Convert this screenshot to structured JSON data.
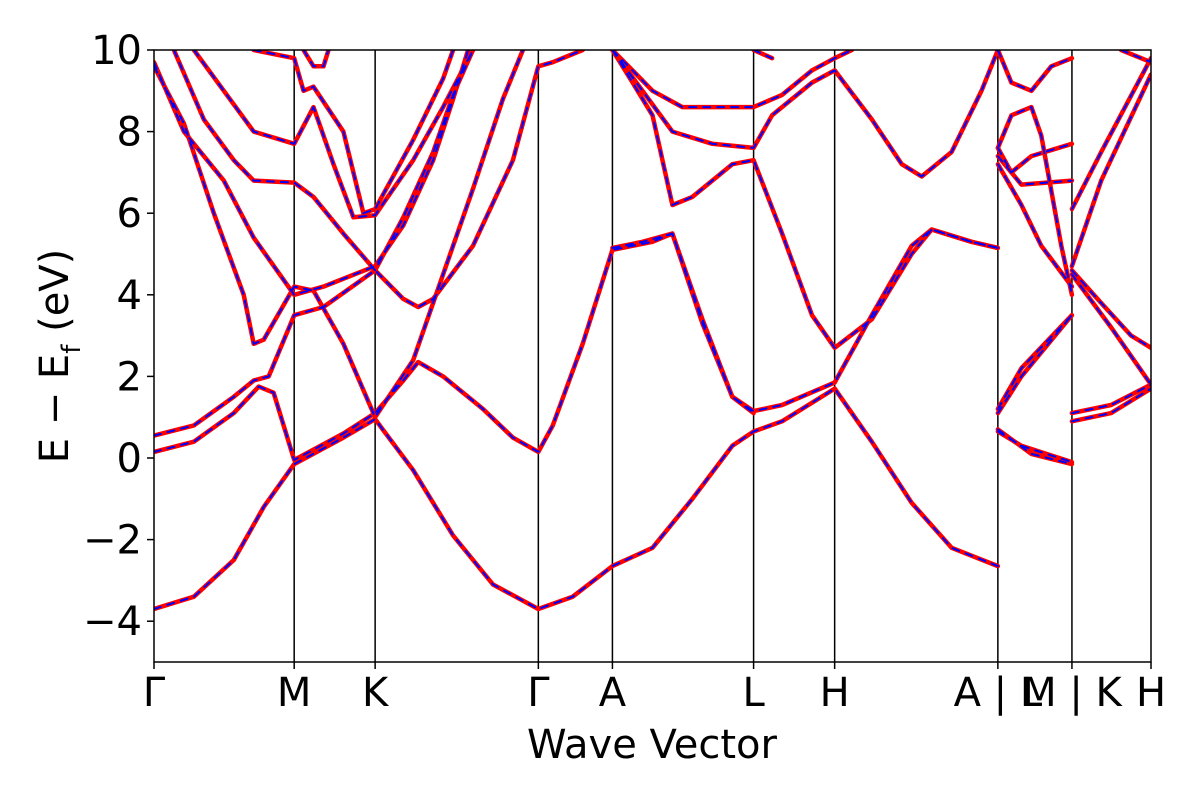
{
  "chart_data": {
    "type": "line",
    "title": "",
    "xlabel": "Wave Vector",
    "ylabel_main": "E − E",
    "ylabel_sub": "f",
    "ylabel_unit": " (eV)",
    "ylim": [
      -5,
      10
    ],
    "yticks": [
      -4,
      -2,
      0,
      2,
      4,
      6,
      8,
      10
    ],
    "ytick_labels": [
      "−4",
      "−2",
      "0",
      "2",
      "4",
      "6",
      "8",
      "10"
    ],
    "xlim": [
      0,
      1
    ],
    "kpoints": [
      {
        "label": "Γ",
        "x": 0.0
      },
      {
        "label": "M",
        "x": 0.1406
      },
      {
        "label": "K",
        "x": 0.2218
      },
      {
        "label": "Γ",
        "x": 0.3855
      },
      {
        "label": "A",
        "x": 0.4598
      },
      {
        "label": "L",
        "x": 0.6014
      },
      {
        "label": "H",
        "x": 0.6827
      },
      {
        "label": "A | L",
        "x": 0.8464
      },
      {
        "label": "M | K",
        "x": 0.9207
      },
      {
        "label": "H",
        "x": 1.0
      }
    ],
    "grid": false,
    "legend": "none",
    "colors": {
      "series_a": "#ff0000",
      "series_b": "#0000ff"
    },
    "series": [
      {
        "line": "solid",
        "color": "#ff0000",
        "bands": [
          [
            [
              0,
              -3.7
            ],
            [
              0.04,
              -3.4
            ],
            [
              0.08,
              -2.5
            ],
            [
              0.11,
              -1.2
            ],
            [
              0.1406,
              -0.15
            ],
            [
              0.19,
              0.5
            ],
            [
              0.2218,
              0.95
            ],
            [
              0.26,
              -0.3
            ],
            [
              0.3,
              -1.9
            ],
            [
              0.34,
              -3.1
            ],
            [
              0.3855,
              -3.7
            ],
            [
              0.42,
              -3.4
            ],
            [
              0.4598,
              -2.65
            ],
            [
              0.5,
              -2.2
            ],
            [
              0.54,
              -1.0
            ],
            [
              0.58,
              0.3
            ],
            [
              0.6014,
              0.65
            ],
            [
              0.63,
              0.9
            ],
            [
              0.6827,
              1.7
            ],
            [
              0.72,
              0.4
            ],
            [
              0.76,
              -1.1
            ],
            [
              0.8,
              -2.2
            ],
            [
              0.8464,
              -2.65
            ]
          ],
          [
            [
              0,
              0.15
            ],
            [
              0.04,
              0.4
            ],
            [
              0.08,
              1.1
            ],
            [
              0.105,
              1.75
            ],
            [
              0.12,
              1.6
            ],
            [
              0.1406,
              -0.05
            ],
            [
              0.19,
              0.6
            ],
            [
              0.2218,
              1.1
            ],
            [
              0.25,
              1.9
            ],
            [
              0.265,
              2.35
            ],
            [
              0.29,
              2.0
            ],
            [
              0.33,
              1.2
            ],
            [
              0.36,
              0.5
            ],
            [
              0.3855,
              0.15
            ],
            [
              0.4,
              0.8
            ],
            [
              0.43,
              2.8
            ],
            [
              0.4598,
              5.1
            ],
            [
              0.5,
              5.3
            ],
            [
              0.52,
              5.5
            ],
            [
              0.55,
              3.3
            ],
            [
              0.58,
              1.5
            ],
            [
              0.6014,
              1.15
            ],
            [
              0.63,
              1.3
            ],
            [
              0.6827,
              1.85
            ],
            [
              0.72,
              3.5
            ],
            [
              0.76,
              5.2
            ],
            [
              0.78,
              5.6
            ],
            [
              0.82,
              5.3
            ],
            [
              0.8464,
              5.15
            ]
          ],
          [
            [
              0,
              0.55
            ],
            [
              0.04,
              0.8
            ],
            [
              0.08,
              1.5
            ],
            [
              0.1,
              1.9
            ],
            [
              0.115,
              2.0
            ],
            [
              0.1406,
              3.5
            ],
            [
              0.17,
              3.7
            ],
            [
              0.2218,
              4.6
            ],
            [
              0.25,
              3.9
            ],
            [
              0.265,
              3.7
            ],
            [
              0.28,
              3.9
            ],
            [
              0.32,
              5.2
            ],
            [
              0.36,
              7.3
            ],
            [
              0.3855,
              9.6
            ],
            [
              0.4,
              9.7
            ],
            [
              0.43,
              10.0
            ]
          ],
          [
            [
              0,
              9.6
            ],
            [
              0.03,
              8.2
            ],
            [
              0.06,
              6.0
            ],
            [
              0.09,
              4.0
            ],
            [
              0.1,
              2.8
            ],
            [
              0.11,
              2.9
            ],
            [
              0.1406,
              4.2
            ],
            [
              0.16,
              4.1
            ],
            [
              0.19,
              2.8
            ],
            [
              0.2218,
              1.0
            ],
            [
              0.26,
              2.4
            ],
            [
              0.29,
              4.5
            ],
            [
              0.32,
              6.6
            ],
            [
              0.35,
              8.8
            ],
            [
              0.37,
              10.0
            ]
          ],
          [
            [
              0,
              9.7
            ],
            [
              0.03,
              8.0
            ],
            [
              0.07,
              6.8
            ],
            [
              0.1,
              5.4
            ],
            [
              0.1406,
              4.0
            ],
            [
              0.17,
              4.2
            ],
            [
              0.2218,
              4.7
            ],
            [
              0.25,
              5.7
            ],
            [
              0.28,
              7.3
            ],
            [
              0.3,
              8.8
            ],
            [
              0.315,
              10.0
            ]
          ],
          [
            [
              0.02,
              10.0
            ],
            [
              0.05,
              8.3
            ],
            [
              0.08,
              7.3
            ],
            [
              0.1,
              6.8
            ],
            [
              0.1406,
              6.75
            ],
            [
              0.16,
              6.4
            ],
            [
              0.19,
              5.5
            ],
            [
              0.2218,
              4.6
            ],
            [
              0.25,
              5.9
            ],
            [
              0.28,
              7.5
            ],
            [
              0.3,
              8.9
            ],
            [
              0.32,
              10.0
            ]
          ],
          [
            [
              0.04,
              10.0
            ],
            [
              0.07,
              9.0
            ],
            [
              0.1,
              8.0
            ],
            [
              0.1406,
              7.7
            ],
            [
              0.16,
              8.6
            ],
            [
              0.18,
              7.2
            ],
            [
              0.2,
              5.9
            ],
            [
              0.2218,
              5.95
            ],
            [
              0.26,
              7.3
            ],
            [
              0.29,
              8.6
            ],
            [
              0.32,
              10.0
            ]
          ],
          [
            [
              0.1,
              10.0
            ],
            [
              0.1406,
              9.8
            ],
            [
              0.15,
              9.0
            ],
            [
              0.16,
              9.1
            ],
            [
              0.19,
              8.0
            ],
            [
              0.21,
              6.0
            ],
            [
              0.2218,
              6.1
            ],
            [
              0.26,
              7.8
            ],
            [
              0.29,
              9.3
            ],
            [
              0.3,
              10.0
            ]
          ],
          [
            [
              0.15,
              10.0
            ],
            [
              0.16,
              9.6
            ],
            [
              0.17,
              9.6
            ],
            [
              0.175,
              10.0
            ]
          ],
          [
            [
              0.4598,
              10.0
            ],
            [
              0.48,
              9.2
            ],
            [
              0.5,
              8.4
            ],
            [
              0.52,
              6.2
            ],
            [
              0.54,
              6.4
            ],
            [
              0.58,
              7.2
            ],
            [
              0.6014,
              7.3
            ],
            [
              0.63,
              5.5
            ],
            [
              0.66,
              3.5
            ],
            [
              0.6827,
              2.7
            ],
            [
              0.72,
              3.4
            ],
            [
              0.76,
              5.0
            ],
            [
              0.78,
              5.6
            ],
            [
              0.82,
              5.3
            ],
            [
              0.8464,
              5.15
            ]
          ],
          [
            [
              0.4598,
              10.0
            ],
            [
              0.48,
              9.5
            ],
            [
              0.5,
              9.0
            ],
            [
              0.53,
              8.6
            ],
            [
              0.6014,
              8.6
            ],
            [
              0.63,
              8.9
            ],
            [
              0.66,
              9.5
            ],
            [
              0.6827,
              9.8
            ],
            [
              0.7,
              10.0
            ]
          ],
          [
            [
              0.4598,
              10.0
            ],
            [
              0.49,
              9.0
            ],
            [
              0.52,
              8.0
            ],
            [
              0.56,
              7.7
            ],
            [
              0.6014,
              7.6
            ],
            [
              0.62,
              8.4
            ],
            [
              0.66,
              9.2
            ],
            [
              0.6827,
              9.5
            ],
            [
              0.72,
              8.3
            ],
            [
              0.75,
              7.2
            ],
            [
              0.77,
              6.9
            ],
            [
              0.8,
              7.5
            ],
            [
              0.83,
              9.0
            ],
            [
              0.8464,
              10.0
            ]
          ],
          [
            [
              0.4598,
              5.15
            ],
            [
              0.49,
              5.3
            ],
            [
              0.52,
              5.5
            ],
            [
              0.55,
              3.4
            ],
            [
              0.58,
              1.5
            ],
            [
              0.6014,
              1.1
            ]
          ],
          [
            [
              0.6014,
              10.0
            ],
            [
              0.62,
              9.8
            ]
          ],
          [
            [
              0.8464,
              10.0
            ],
            [
              0.86,
              9.2
            ],
            [
              0.88,
              9.0
            ],
            [
              0.9,
              9.6
            ],
            [
              0.9207,
              9.8
            ]
          ],
          [
            [
              0.8464,
              7.6
            ],
            [
              0.86,
              7.0
            ],
            [
              0.88,
              7.4
            ],
            [
              0.9207,
              7.7
            ]
          ],
          [
            [
              0.8464,
              7.4
            ],
            [
              0.87,
              6.7
            ],
            [
              0.9207,
              6.8
            ]
          ],
          [
            [
              0.8464,
              7.6
            ],
            [
              0.86,
              8.4
            ],
            [
              0.88,
              8.6
            ],
            [
              0.89,
              7.9
            ],
            [
              0.91,
              5.2
            ],
            [
              0.9207,
              4.0
            ]
          ],
          [
            [
              0.8464,
              7.2
            ],
            [
              0.87,
              6.2
            ],
            [
              0.89,
              5.2
            ],
            [
              0.9207,
              4.2
            ]
          ],
          [
            [
              0.8464,
              1.1
            ],
            [
              0.87,
              2.0
            ],
            [
              0.9207,
              3.5
            ]
          ],
          [
            [
              0.8464,
              1.2
            ],
            [
              0.87,
              2.2
            ],
            [
              0.9207,
              3.5
            ]
          ],
          [
            [
              0.8464,
              0.65
            ],
            [
              0.87,
              0.3
            ],
            [
              0.9207,
              -0.1
            ]
          ],
          [
            [
              0.8464,
              0.7
            ],
            [
              0.88,
              0.1
            ],
            [
              0.9207,
              -0.15
            ]
          ],
          [
            [
              0.9207,
              6.1
            ],
            [
              0.95,
              7.5
            ],
            [
              1.0,
              9.8
            ]
          ],
          [
            [
              0.9207,
              4.7
            ],
            [
              0.95,
              6.8
            ],
            [
              1.0,
              9.4
            ]
          ],
          [
            [
              0.9207,
              4.6
            ],
            [
              0.95,
              3.8
            ],
            [
              0.98,
              3.0
            ],
            [
              1.0,
              2.7
            ]
          ],
          [
            [
              0.9207,
              4.5
            ],
            [
              0.96,
              3.2
            ],
            [
              1.0,
              1.8
            ]
          ],
          [
            [
              0.9207,
              1.1
            ],
            [
              0.96,
              1.3
            ],
            [
              1.0,
              1.8
            ]
          ],
          [
            [
              0.9207,
              0.9
            ],
            [
              0.96,
              1.1
            ],
            [
              1.0,
              1.7
            ]
          ],
          [
            [
              0.97,
              10.0
            ],
            [
              1.0,
              9.7
            ]
          ]
        ]
      },
      {
        "line": "dashed",
        "color": "#0000ff",
        "bands": "same as solid series (overlaid)"
      }
    ]
  }
}
